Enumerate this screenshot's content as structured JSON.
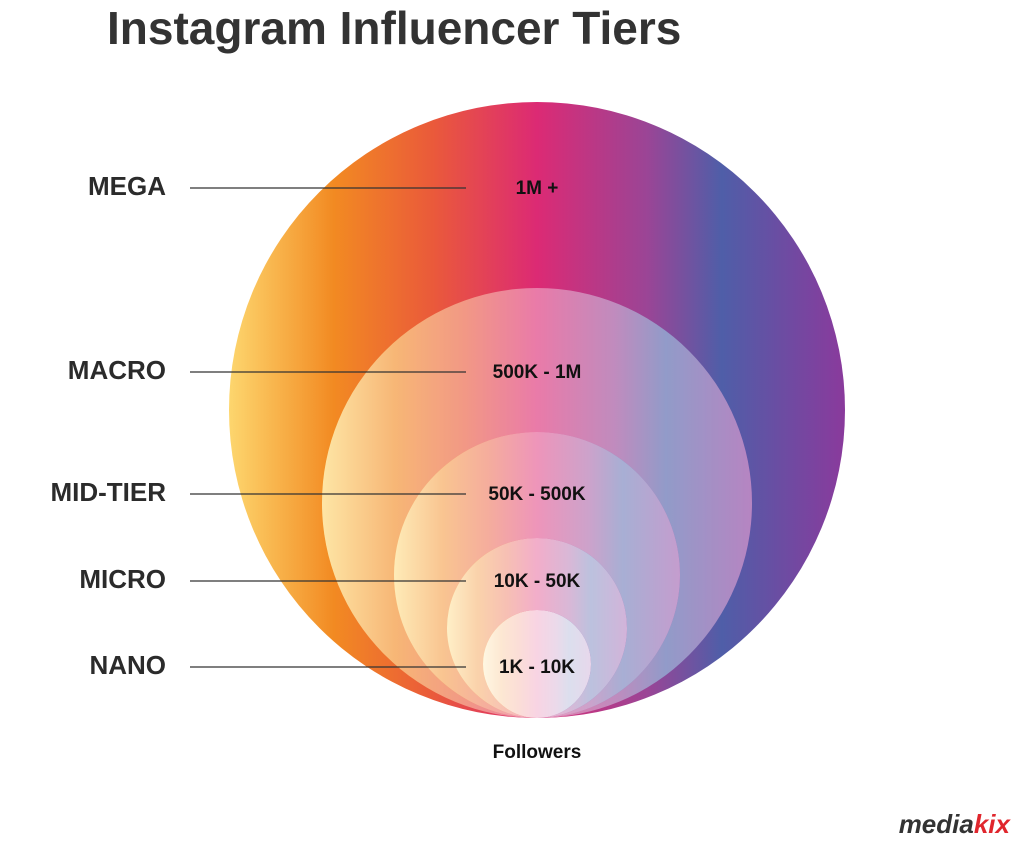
{
  "header": {
    "title": "Instagram Influencer Tiers"
  },
  "tiers": [
    {
      "label": "MEGA",
      "range": "1M +"
    },
    {
      "label": "MACRO",
      "range": "500K - 1M"
    },
    {
      "label": "MID-TIER",
      "range": "50K - 500K"
    },
    {
      "label": "MICRO",
      "range": "10K - 50K"
    },
    {
      "label": "NANO",
      "range": "1K - 10K"
    }
  ],
  "axis_caption": "Followers",
  "logo": [
    "media",
    "kix"
  ]
}
